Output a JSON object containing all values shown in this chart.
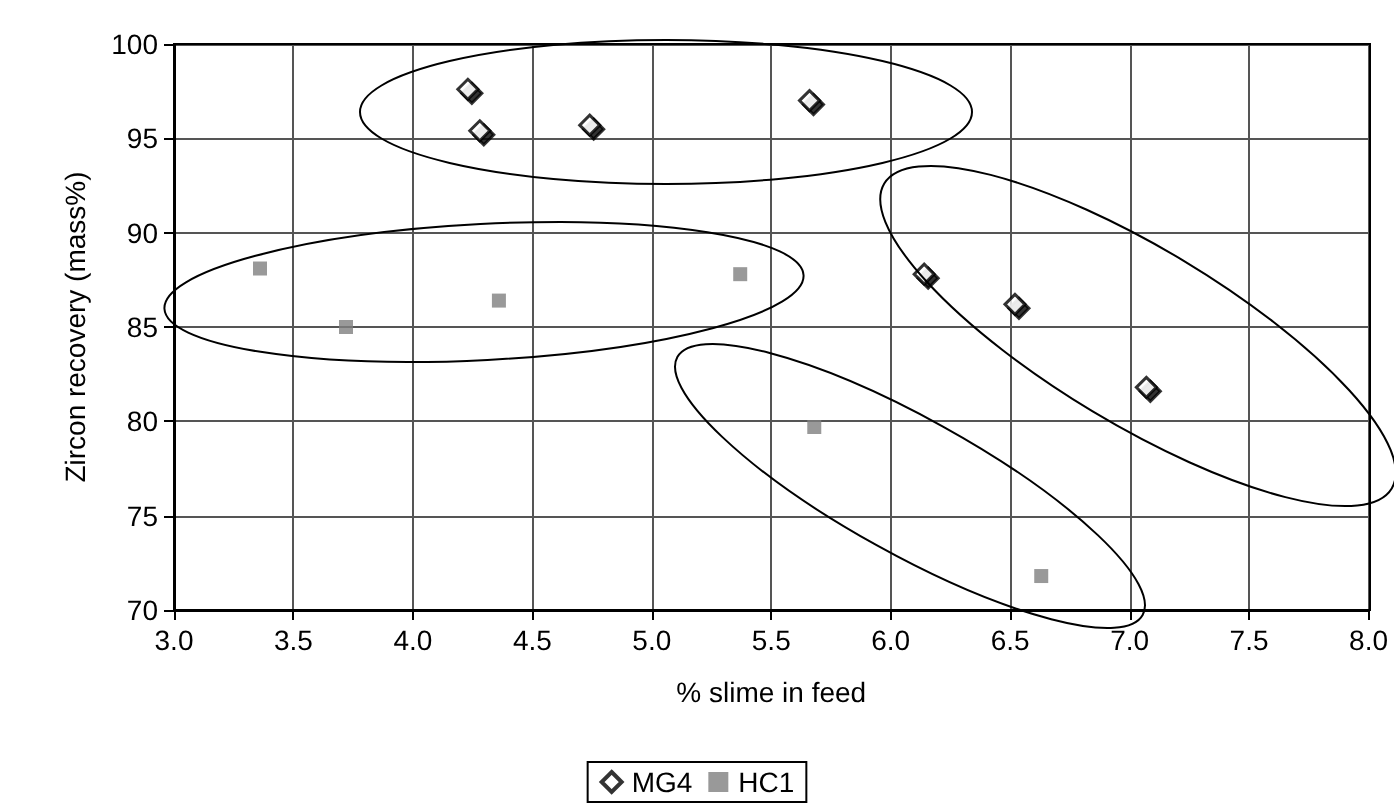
{
  "chart_data": {
    "type": "scatter",
    "xlabel": "% slime in feed",
    "ylabel": "Zircon recovery (mass%)",
    "xlim": [
      3,
      8
    ],
    "xticks": [
      {
        "value": 3,
        "label": "3.0"
      },
      {
        "value": 3.5,
        "label": "3.5"
      },
      {
        "value": 4,
        "label": "4.0"
      },
      {
        "value": 4.5,
        "label": "4.5"
      },
      {
        "value": 5,
        "label": "5.0"
      },
      {
        "value": 5.5,
        "label": "5.5"
      },
      {
        "value": 6,
        "label": "6.0"
      },
      {
        "value": 6.5,
        "label": "6.5"
      },
      {
        "value": 7,
        "label": "7.0"
      },
      {
        "value": 7.5,
        "label": "7.5"
      },
      {
        "value": 8,
        "label": "8.0"
      }
    ],
    "ylim": [
      70,
      100
    ],
    "yticks": [
      70,
      75,
      80,
      85,
      90,
      95,
      100
    ],
    "grid": true,
    "legend": "bottom",
    "series": [
      {
        "name": "MG4",
        "color": "#000000",
        "marker": "diamond",
        "x": [
          4.23,
          4.28,
          4.74,
          5.66,
          6.14,
          6.52,
          7.07
        ],
        "values": [
          97.6,
          95.4,
          95.7,
          97.0,
          87.8,
          86.2,
          81.8
        ]
      },
      {
        "name": "HC1",
        "color": "#808080",
        "marker": "square",
        "x": [
          3.36,
          3.72,
          4.36,
          5.37,
          5.68,
          6.63
        ],
        "values": [
          88.1,
          85.0,
          86.4,
          87.8,
          79.7,
          71.8
        ]
      }
    ]
  }
}
